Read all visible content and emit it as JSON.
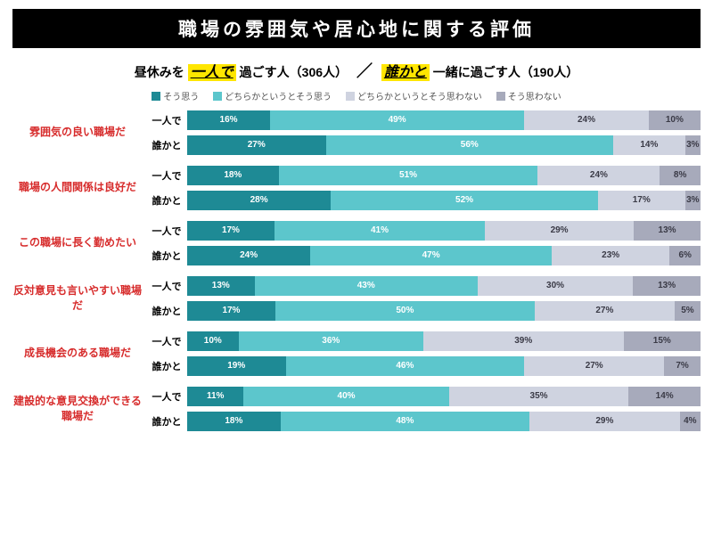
{
  "title": "職場の雰囲気や居心地に関する評価",
  "subtitle": {
    "pre1": "昼休みを",
    "hl1": "一人で",
    "post1": "過ごす人（306人）",
    "slash": "／",
    "hl2": "誰かと",
    "post2": "一緒に過ごす人（190人）"
  },
  "legend": {
    "items": [
      {
        "label": "そう思う",
        "color": "#1e8a95"
      },
      {
        "label": "どちらかというとそう思う",
        "color": "#5cc6cc"
      },
      {
        "label": "どちらかというとそう思わない",
        "color": "#cfd3e0"
      },
      {
        "label": "そう思わない",
        "color": "#a7aabb"
      }
    ]
  },
  "row_labels": [
    "一人で",
    "誰かと"
  ],
  "colors": [
    "#1e8a95",
    "#5cc6cc",
    "#cfd3e0",
    "#a7aabb"
  ],
  "questions": [
    {
      "label": "雰囲気の良い職場だ",
      "rows": [
        {
          "v": [
            16,
            49,
            24,
            10
          ]
        },
        {
          "v": [
            27,
            56,
            14,
            3
          ]
        }
      ]
    },
    {
      "label": "職場の人間関係は良好だ",
      "rows": [
        {
          "v": [
            18,
            51,
            24,
            8
          ]
        },
        {
          "v": [
            28,
            52,
            17,
            3
          ]
        }
      ]
    },
    {
      "label": "この職場に長く勤めたい",
      "rows": [
        {
          "v": [
            17,
            41,
            29,
            13
          ]
        },
        {
          "v": [
            24,
            47,
            23,
            6
          ]
        }
      ]
    },
    {
      "label": "反対意見も言いやすい職場だ",
      "rows": [
        {
          "v": [
            13,
            43,
            30,
            13
          ]
        },
        {
          "v": [
            17,
            50,
            27,
            5
          ]
        }
      ]
    },
    {
      "label": "成長機会のある職場だ",
      "rows": [
        {
          "v": [
            10,
            36,
            39,
            15
          ]
        },
        {
          "v": [
            19,
            46,
            27,
            7
          ]
        }
      ]
    },
    {
      "label": "建設的な意見交換ができる職場だ",
      "rows": [
        {
          "v": [
            11,
            40,
            35,
            14
          ]
        },
        {
          "v": [
            18,
            48,
            29,
            4
          ]
        }
      ]
    }
  ]
}
